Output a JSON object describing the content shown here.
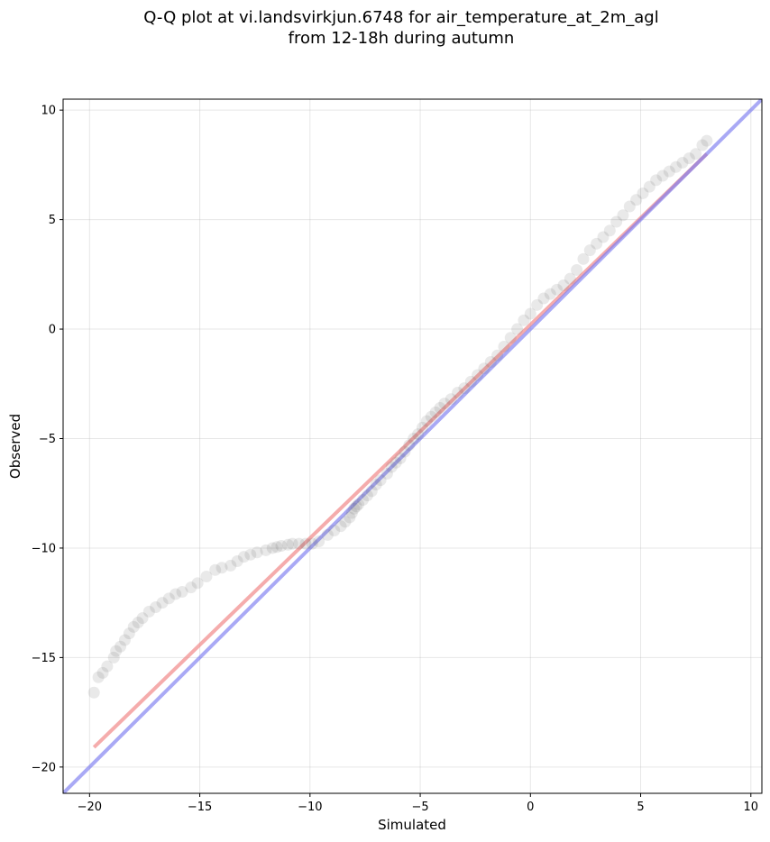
{
  "chart_data": {
    "type": "scatter",
    "title": [
      "Q-Q plot at vi.landsvirkjun.6748 for air_temperature_at_2m_agl",
      "from 12-18h during autumn"
    ],
    "xlabel": "Simulated",
    "ylabel": "Observed",
    "xlim": [
      -21.2,
      10.5
    ],
    "ylim": [
      -21.2,
      10.5
    ],
    "x_ticks": [
      -20,
      -15,
      -10,
      -5,
      0,
      5,
      10
    ],
    "y_ticks": [
      -20,
      -15,
      -10,
      -5,
      0,
      5,
      10
    ],
    "x_tick_labels": [
      "−20",
      "−15",
      "−10",
      "−5",
      "0",
      "5",
      "10"
    ],
    "y_tick_labels": [
      "−20",
      "−15",
      "−10",
      "−5",
      "0",
      "5",
      "10"
    ],
    "grid": true,
    "colors": {
      "points": "#555555",
      "fit_line": "#f08080",
      "identity_line": "#7b7bf0"
    },
    "series": [
      {
        "kind": "points",
        "x": [
          -19.8,
          -19.6,
          -19.4,
          -19.2,
          -18.9,
          -18.8,
          -18.6,
          -18.4,
          -18.2,
          -18.0,
          -17.8,
          -17.6,
          -17.3,
          -17.0,
          -16.7,
          -16.4,
          -16.1,
          -15.8,
          -15.4,
          -15.1,
          -14.7,
          -14.3,
          -14.0,
          -13.6,
          -13.3,
          -13.0,
          -12.7,
          -12.4,
          -12.0,
          -11.7,
          -11.5,
          -11.3,
          -11.0,
          -10.8,
          -10.5,
          -10.2,
          -9.9,
          -9.6,
          -9.2,
          -8.9,
          -8.6,
          -8.4,
          -8.2,
          -8.1,
          -8.0,
          -7.9,
          -7.8,
          -7.6,
          -7.4,
          -7.2,
          -7.0,
          -6.8,
          -6.5,
          -6.3,
          -6.1,
          -5.9,
          -5.7,
          -5.5,
          -5.3,
          -5.1,
          -4.9,
          -4.7,
          -4.5,
          -4.3,
          -4.1,
          -3.9,
          -3.6,
          -3.3,
          -3.0,
          -2.7,
          -2.4,
          -2.1,
          -1.8,
          -1.5,
          -1.2,
          -0.9,
          -0.6,
          -0.3,
          0.0,
          0.3,
          0.6,
          0.9,
          1.2,
          1.5,
          1.8,
          2.1,
          2.4,
          2.7,
          3.0,
          3.3,
          3.6,
          3.9,
          4.2,
          4.5,
          4.8,
          5.1,
          5.4,
          5.7,
          6.0,
          6.3,
          6.6,
          6.9,
          7.2,
          7.5,
          7.8,
          8.0
        ],
        "y": [
          -16.6,
          -15.9,
          -15.7,
          -15.4,
          -15.0,
          -14.7,
          -14.5,
          -14.2,
          -13.9,
          -13.6,
          -13.4,
          -13.2,
          -12.9,
          -12.7,
          -12.5,
          -12.3,
          -12.1,
          -12.0,
          -11.8,
          -11.6,
          -11.3,
          -11.0,
          -10.9,
          -10.8,
          -10.6,
          -10.4,
          -10.3,
          -10.2,
          -10.1,
          -10.0,
          -9.95,
          -9.9,
          -9.85,
          -9.8,
          -9.8,
          -9.8,
          -9.8,
          -9.7,
          -9.4,
          -9.2,
          -9.0,
          -8.8,
          -8.6,
          -8.4,
          -8.2,
          -8.1,
          -8.0,
          -7.8,
          -7.6,
          -7.4,
          -7.1,
          -6.9,
          -6.6,
          -6.3,
          -6.1,
          -5.9,
          -5.6,
          -5.3,
          -5.0,
          -4.8,
          -4.5,
          -4.2,
          -4.0,
          -3.8,
          -3.6,
          -3.4,
          -3.2,
          -2.9,
          -2.7,
          -2.4,
          -2.1,
          -1.8,
          -1.5,
          -1.2,
          -0.8,
          -0.4,
          0.0,
          0.4,
          0.7,
          1.1,
          1.4,
          1.6,
          1.8,
          2.0,
          2.3,
          2.7,
          3.2,
          3.6,
          3.9,
          4.2,
          4.5,
          4.9,
          5.2,
          5.6,
          5.9,
          6.2,
          6.5,
          6.8,
          7.0,
          7.2,
          7.4,
          7.6,
          7.8,
          8.0,
          8.4,
          8.6
        ]
      },
      {
        "kind": "line",
        "role": "fit",
        "x": [
          -19.8,
          8.0
        ],
        "y": [
          -19.1,
          8.0
        ]
      },
      {
        "kind": "line",
        "role": "identity",
        "x": [
          -21.2,
          10.5
        ],
        "y": [
          -21.2,
          10.5
        ]
      }
    ]
  }
}
